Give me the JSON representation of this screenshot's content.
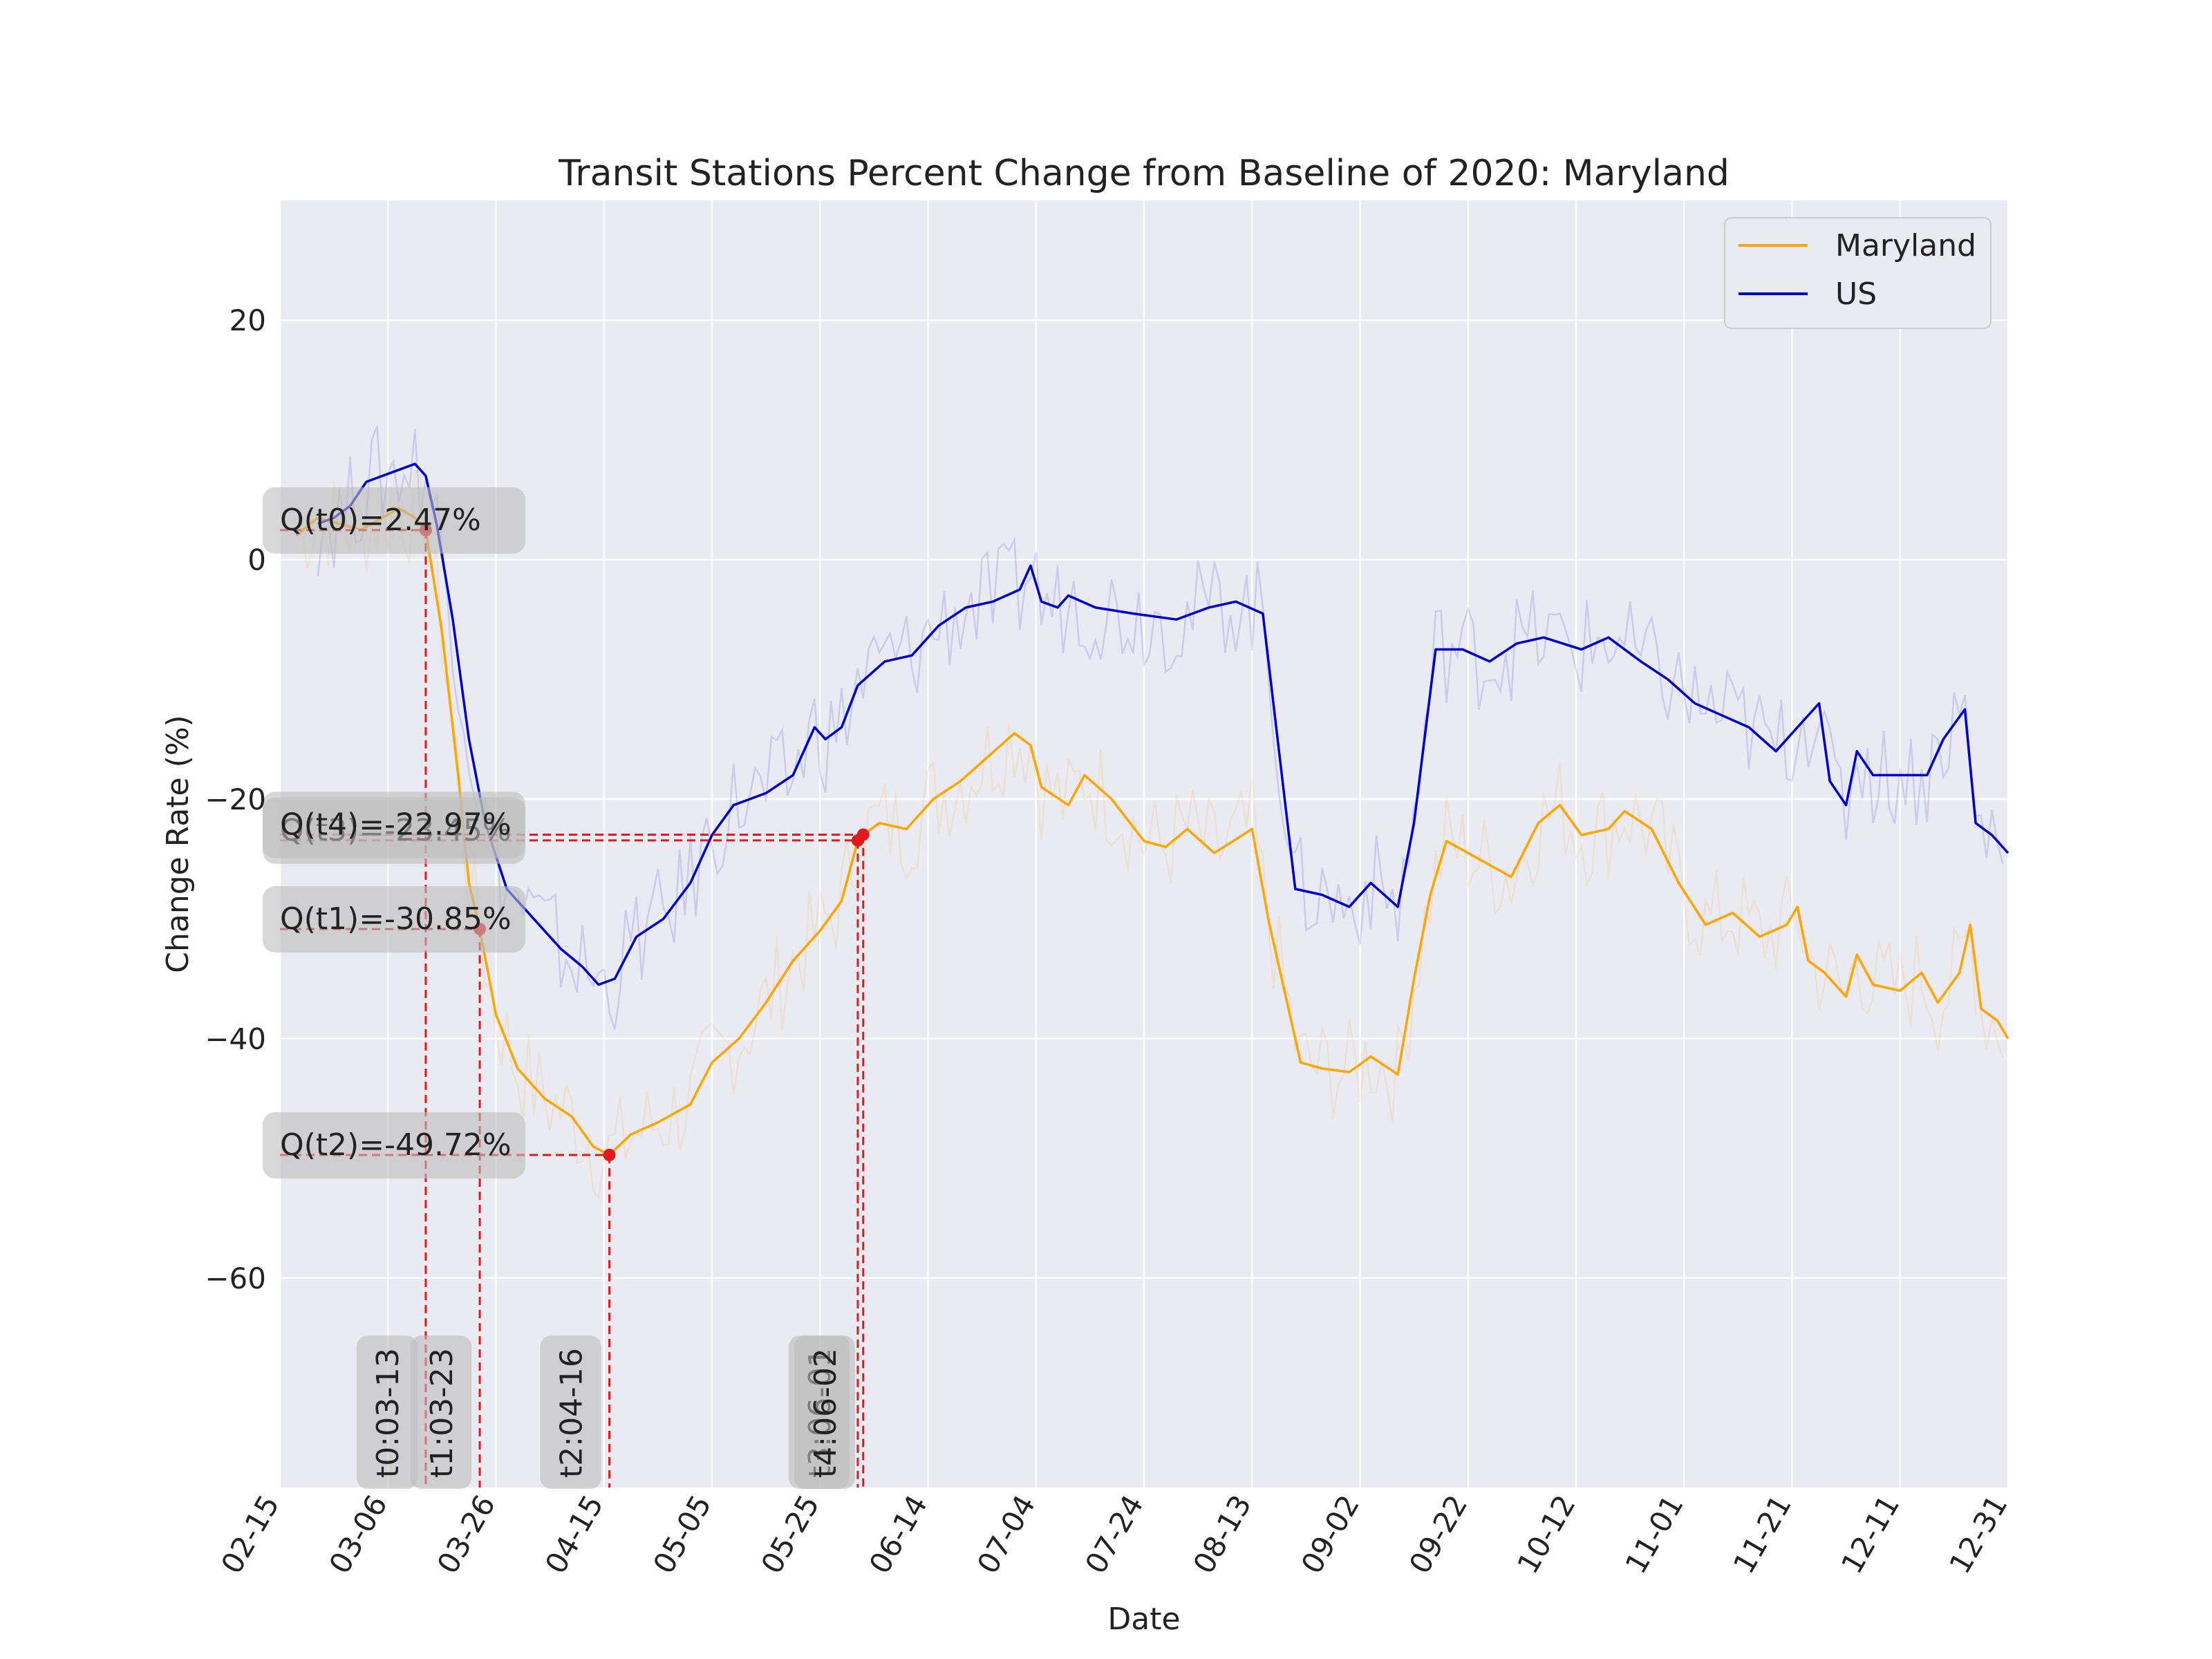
{
  "chart_data": {
    "type": "line",
    "title": "Transit Stations Percent Change from Baseline of 2020: Maryland",
    "xlabel": "Date",
    "ylabel": "Change Rate (%)",
    "x_range": [
      "2020-02-15",
      "2020-12-31"
    ],
    "ylim": [
      -77.5,
      30
    ],
    "x_ticks": [
      "02-15",
      "03-06",
      "03-26",
      "04-15",
      "05-05",
      "05-25",
      "06-14",
      "07-04",
      "07-24",
      "08-13",
      "09-02",
      "09-22",
      "10-12",
      "11-01",
      "11-21",
      "12-11",
      "12-31"
    ],
    "y_ticks": [
      20,
      0,
      -20,
      -40,
      -60
    ],
    "grid": true,
    "background_color": "#eaeaf2",
    "legend_position": "upper right",
    "series": [
      {
        "name": "Maryland",
        "color": "#ffa500",
        "points": [
          [
            "2020-02-18",
            2.0
          ],
          [
            "2020-02-22",
            3.5
          ],
          [
            "2020-02-26",
            3.0
          ],
          [
            "2020-03-01",
            2.5
          ],
          [
            "2020-03-05",
            3.5
          ],
          [
            "2020-03-08",
            4.3
          ],
          [
            "2020-03-11",
            3.5
          ],
          [
            "2020-03-13",
            2.47
          ],
          [
            "2020-03-16",
            -6.0
          ],
          [
            "2020-03-19",
            -18.0
          ],
          [
            "2020-03-21",
            -27.0
          ],
          [
            "2020-03-23",
            -30.85
          ],
          [
            "2020-03-26",
            -38.0
          ],
          [
            "2020-03-30",
            -42.5
          ],
          [
            "2020-04-04",
            -45.0
          ],
          [
            "2020-04-09",
            -46.5
          ],
          [
            "2020-04-13",
            -49.0
          ],
          [
            "2020-04-16",
            -49.72
          ],
          [
            "2020-04-20",
            -48.0
          ],
          [
            "2020-04-25",
            -47.0
          ],
          [
            "2020-05-01",
            -45.5
          ],
          [
            "2020-05-05",
            -42.0
          ],
          [
            "2020-05-10",
            -40.0
          ],
          [
            "2020-05-15",
            -37.0
          ],
          [
            "2020-05-20",
            -33.5
          ],
          [
            "2020-05-25",
            -31.0
          ],
          [
            "2020-05-29",
            -28.5
          ],
          [
            "2020-06-01",
            -23.45
          ],
          [
            "2020-06-02",
            -22.97
          ],
          [
            "2020-06-05",
            -22.0
          ],
          [
            "2020-06-10",
            -22.5
          ],
          [
            "2020-06-15",
            -20.0
          ],
          [
            "2020-06-20",
            -18.5
          ],
          [
            "2020-06-25",
            -16.5
          ],
          [
            "2020-06-30",
            -14.5
          ],
          [
            "2020-07-03",
            -15.5
          ],
          [
            "2020-07-05",
            -19.0
          ],
          [
            "2020-07-10",
            -20.5
          ],
          [
            "2020-07-13",
            -18.0
          ],
          [
            "2020-07-18",
            -20.0
          ],
          [
            "2020-07-24",
            -23.5
          ],
          [
            "2020-07-28",
            -24.0
          ],
          [
            "2020-08-01",
            -22.5
          ],
          [
            "2020-08-06",
            -24.5
          ],
          [
            "2020-08-13",
            -22.5
          ],
          [
            "2020-08-16",
            -30.0
          ],
          [
            "2020-08-19",
            -36.0
          ],
          [
            "2020-08-22",
            -42.0
          ],
          [
            "2020-08-26",
            -42.5
          ],
          [
            "2020-08-31",
            -42.8
          ],
          [
            "2020-09-04",
            -41.5
          ],
          [
            "2020-09-09",
            -43.0
          ],
          [
            "2020-09-12",
            -35.0
          ],
          [
            "2020-09-15",
            -28.0
          ],
          [
            "2020-09-18",
            -23.5
          ],
          [
            "2020-09-24",
            -25.0
          ],
          [
            "2020-09-30",
            -26.5
          ],
          [
            "2020-10-05",
            -22.0
          ],
          [
            "2020-10-09",
            -20.5
          ],
          [
            "2020-10-13",
            -23.0
          ],
          [
            "2020-10-18",
            -22.5
          ],
          [
            "2020-10-21",
            -21.0
          ],
          [
            "2020-10-26",
            -22.5
          ],
          [
            "2020-10-31",
            -27.0
          ],
          [
            "2020-11-05",
            -30.5
          ],
          [
            "2020-11-10",
            -29.5
          ],
          [
            "2020-11-15",
            -31.5
          ],
          [
            "2020-11-20",
            -30.5
          ],
          [
            "2020-11-22",
            -29.0
          ],
          [
            "2020-11-24",
            -33.5
          ],
          [
            "2020-11-27",
            -34.5
          ],
          [
            "2020-12-01",
            -36.5
          ],
          [
            "2020-12-03",
            -33.0
          ],
          [
            "2020-12-06",
            -35.5
          ],
          [
            "2020-12-11",
            -36.0
          ],
          [
            "2020-12-15",
            -34.5
          ],
          [
            "2020-12-18",
            -37.0
          ],
          [
            "2020-12-22",
            -34.5
          ],
          [
            "2020-12-24",
            -30.5
          ],
          [
            "2020-12-26",
            -37.5
          ],
          [
            "2020-12-29",
            -38.5
          ],
          [
            "2020-12-31",
            -40.0
          ]
        ]
      },
      {
        "name": "US",
        "color": "#0000cd",
        "points": [
          [
            "2020-02-22",
            3.0
          ],
          [
            "2020-02-25",
            3.5
          ],
          [
            "2020-02-28",
            4.5
          ],
          [
            "2020-03-02",
            6.5
          ],
          [
            "2020-03-05",
            7.0
          ],
          [
            "2020-03-08",
            7.5
          ],
          [
            "2020-03-11",
            8.0
          ],
          [
            "2020-03-13",
            7.0
          ],
          [
            "2020-03-15",
            3.0
          ],
          [
            "2020-03-18",
            -5.0
          ],
          [
            "2020-03-21",
            -15.0
          ],
          [
            "2020-03-24",
            -22.0
          ],
          [
            "2020-03-28",
            -27.5
          ],
          [
            "2020-04-02",
            -30.0
          ],
          [
            "2020-04-07",
            -32.5
          ],
          [
            "2020-04-11",
            -34.0
          ],
          [
            "2020-04-14",
            -35.5
          ],
          [
            "2020-04-17",
            -35.0
          ],
          [
            "2020-04-21",
            -31.5
          ],
          [
            "2020-04-26",
            -30.0
          ],
          [
            "2020-05-01",
            -27.0
          ],
          [
            "2020-05-05",
            -23.0
          ],
          [
            "2020-05-09",
            -20.5
          ],
          [
            "2020-05-15",
            -19.5
          ],
          [
            "2020-05-20",
            -18.0
          ],
          [
            "2020-05-24",
            -14.0
          ],
          [
            "2020-05-26",
            -15.0
          ],
          [
            "2020-05-29",
            -14.0
          ],
          [
            "2020-06-01",
            -10.5
          ],
          [
            "2020-06-06",
            -8.5
          ],
          [
            "2020-06-11",
            -8.0
          ],
          [
            "2020-06-16",
            -5.5
          ],
          [
            "2020-06-21",
            -4.0
          ],
          [
            "2020-06-26",
            -3.5
          ],
          [
            "2020-07-01",
            -2.5
          ],
          [
            "2020-07-03",
            -0.5
          ],
          [
            "2020-07-05",
            -3.5
          ],
          [
            "2020-07-08",
            -4.0
          ],
          [
            "2020-07-10",
            -3.0
          ],
          [
            "2020-07-15",
            -4.0
          ],
          [
            "2020-07-22",
            -4.5
          ],
          [
            "2020-07-30",
            -5.0
          ],
          [
            "2020-08-05",
            -4.0
          ],
          [
            "2020-08-10",
            -3.5
          ],
          [
            "2020-08-15",
            -4.5
          ],
          [
            "2020-08-18",
            -16.0
          ],
          [
            "2020-08-21",
            -27.5
          ],
          [
            "2020-08-26",
            -28.0
          ],
          [
            "2020-08-31",
            -29.0
          ],
          [
            "2020-09-04",
            -27.0
          ],
          [
            "2020-09-09",
            -29.0
          ],
          [
            "2020-09-12",
            -22.0
          ],
          [
            "2020-09-16",
            -7.5
          ],
          [
            "2020-09-21",
            -7.5
          ],
          [
            "2020-09-26",
            -8.5
          ],
          [
            "2020-10-01",
            -7.0
          ],
          [
            "2020-10-06",
            -6.5
          ],
          [
            "2020-10-13",
            -7.5
          ],
          [
            "2020-10-18",
            -6.5
          ],
          [
            "2020-10-24",
            -8.5
          ],
          [
            "2020-10-29",
            -10.0
          ],
          [
            "2020-11-03",
            -12.0
          ],
          [
            "2020-11-08",
            -13.0
          ],
          [
            "2020-11-13",
            -14.0
          ],
          [
            "2020-11-18",
            -16.0
          ],
          [
            "2020-11-23",
            -13.5
          ],
          [
            "2020-11-26",
            -12.0
          ],
          [
            "2020-11-28",
            -18.5
          ],
          [
            "2020-12-01",
            -20.5
          ],
          [
            "2020-12-03",
            -16.0
          ],
          [
            "2020-12-06",
            -18.0
          ],
          [
            "2020-12-12",
            -18.0
          ],
          [
            "2020-12-16",
            -18.0
          ],
          [
            "2020-12-19",
            -15.0
          ],
          [
            "2020-12-23",
            -12.5
          ],
          [
            "2020-12-25",
            -22.0
          ],
          [
            "2020-12-28",
            -23.0
          ],
          [
            "2020-12-31",
            -24.5
          ]
        ]
      }
    ],
    "annotations": [
      {
        "point_label": "Q(t0)=2.47%",
        "date_label": "t0:03-13",
        "date": "2020-03-13",
        "value": 2.47
      },
      {
        "point_label": "Q(t1)=-30.85%",
        "date_label": "t1:03-23",
        "date": "2020-03-23",
        "value": -30.85
      },
      {
        "point_label": "Q(t2)=-49.72%",
        "date_label": "t2:04-16",
        "date": "2020-04-16",
        "value": -49.72
      },
      {
        "point_label": "Q(t3)=-23.45%",
        "date_label": "t3:06-01",
        "date": "2020-06-01",
        "value": -23.45
      },
      {
        "point_label": "Q(t4)=-22.97%",
        "date_label": "t4:06-02",
        "date": "2020-06-02",
        "value": -22.97
      }
    ],
    "annotation_color": "#e31a1c"
  }
}
